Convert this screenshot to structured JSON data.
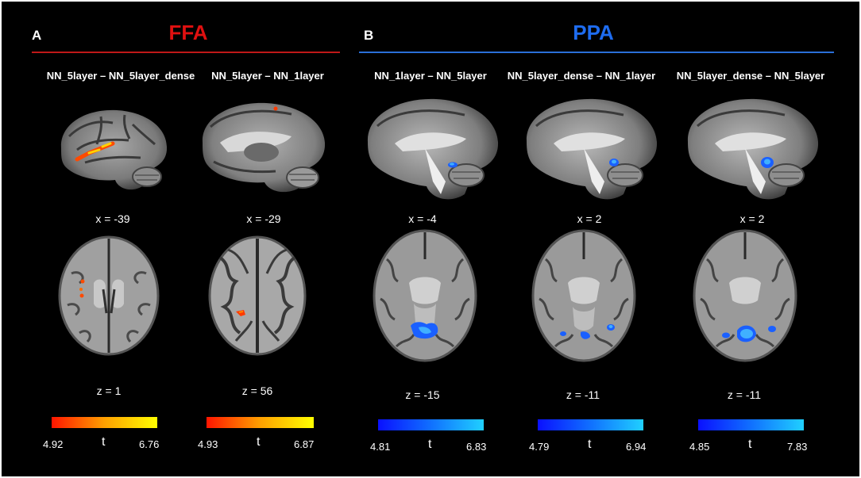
{
  "panels": {
    "a": {
      "letter": "A",
      "title": "FFA",
      "title_color": "#e01010",
      "rule_color": "#c01818",
      "columns": [
        {
          "label": "NN_5layer – NN_5layer_dense",
          "sagittal_label": "x = -39",
          "axial_label": "z = 1",
          "colorbar": {
            "min": "4.92",
            "max": "6.76",
            "stat": "t",
            "colors": [
              "#ff1500",
              "#ffa000",
              "#ffff00"
            ]
          }
        },
        {
          "label": "NN_5layer – NN_1layer",
          "sagittal_label": "x = -29",
          "axial_label": "z = 56",
          "colorbar": {
            "min": "4.93",
            "max": "6.87",
            "stat": "t",
            "colors": [
              "#ff1500",
              "#ffa000",
              "#ffff00"
            ]
          }
        }
      ]
    },
    "b": {
      "letter": "B",
      "title": "PPA",
      "title_color": "#1e6cf0",
      "rule_color": "#2a6fd8",
      "columns": [
        {
          "label": "NN_1layer – NN_5layer",
          "sagittal_label": "x = -4",
          "axial_label": "z = -15",
          "colorbar": {
            "min": "4.81",
            "max": "6.83",
            "stat": "t",
            "colors": [
              "#0a10ff",
              "#1070ff",
              "#20d0ff"
            ]
          }
        },
        {
          "label": "NN_5layer_dense – NN_1layer",
          "sagittal_label": "x = 2",
          "axial_label": "z = -11",
          "colorbar": {
            "min": "4.79",
            "max": "6.94",
            "stat": "t",
            "colors": [
              "#0a10ff",
              "#1070ff",
              "#20d0ff"
            ]
          }
        },
        {
          "label": "NN_5layer_dense – NN_5layer",
          "sagittal_label": "x = 2",
          "axial_label": "z = -11",
          "colorbar": {
            "min": "4.85",
            "max": "7.83",
            "stat": "t",
            "colors": [
              "#0a10ff",
              "#1070ff",
              "#20d0ff"
            ]
          }
        }
      ]
    }
  }
}
